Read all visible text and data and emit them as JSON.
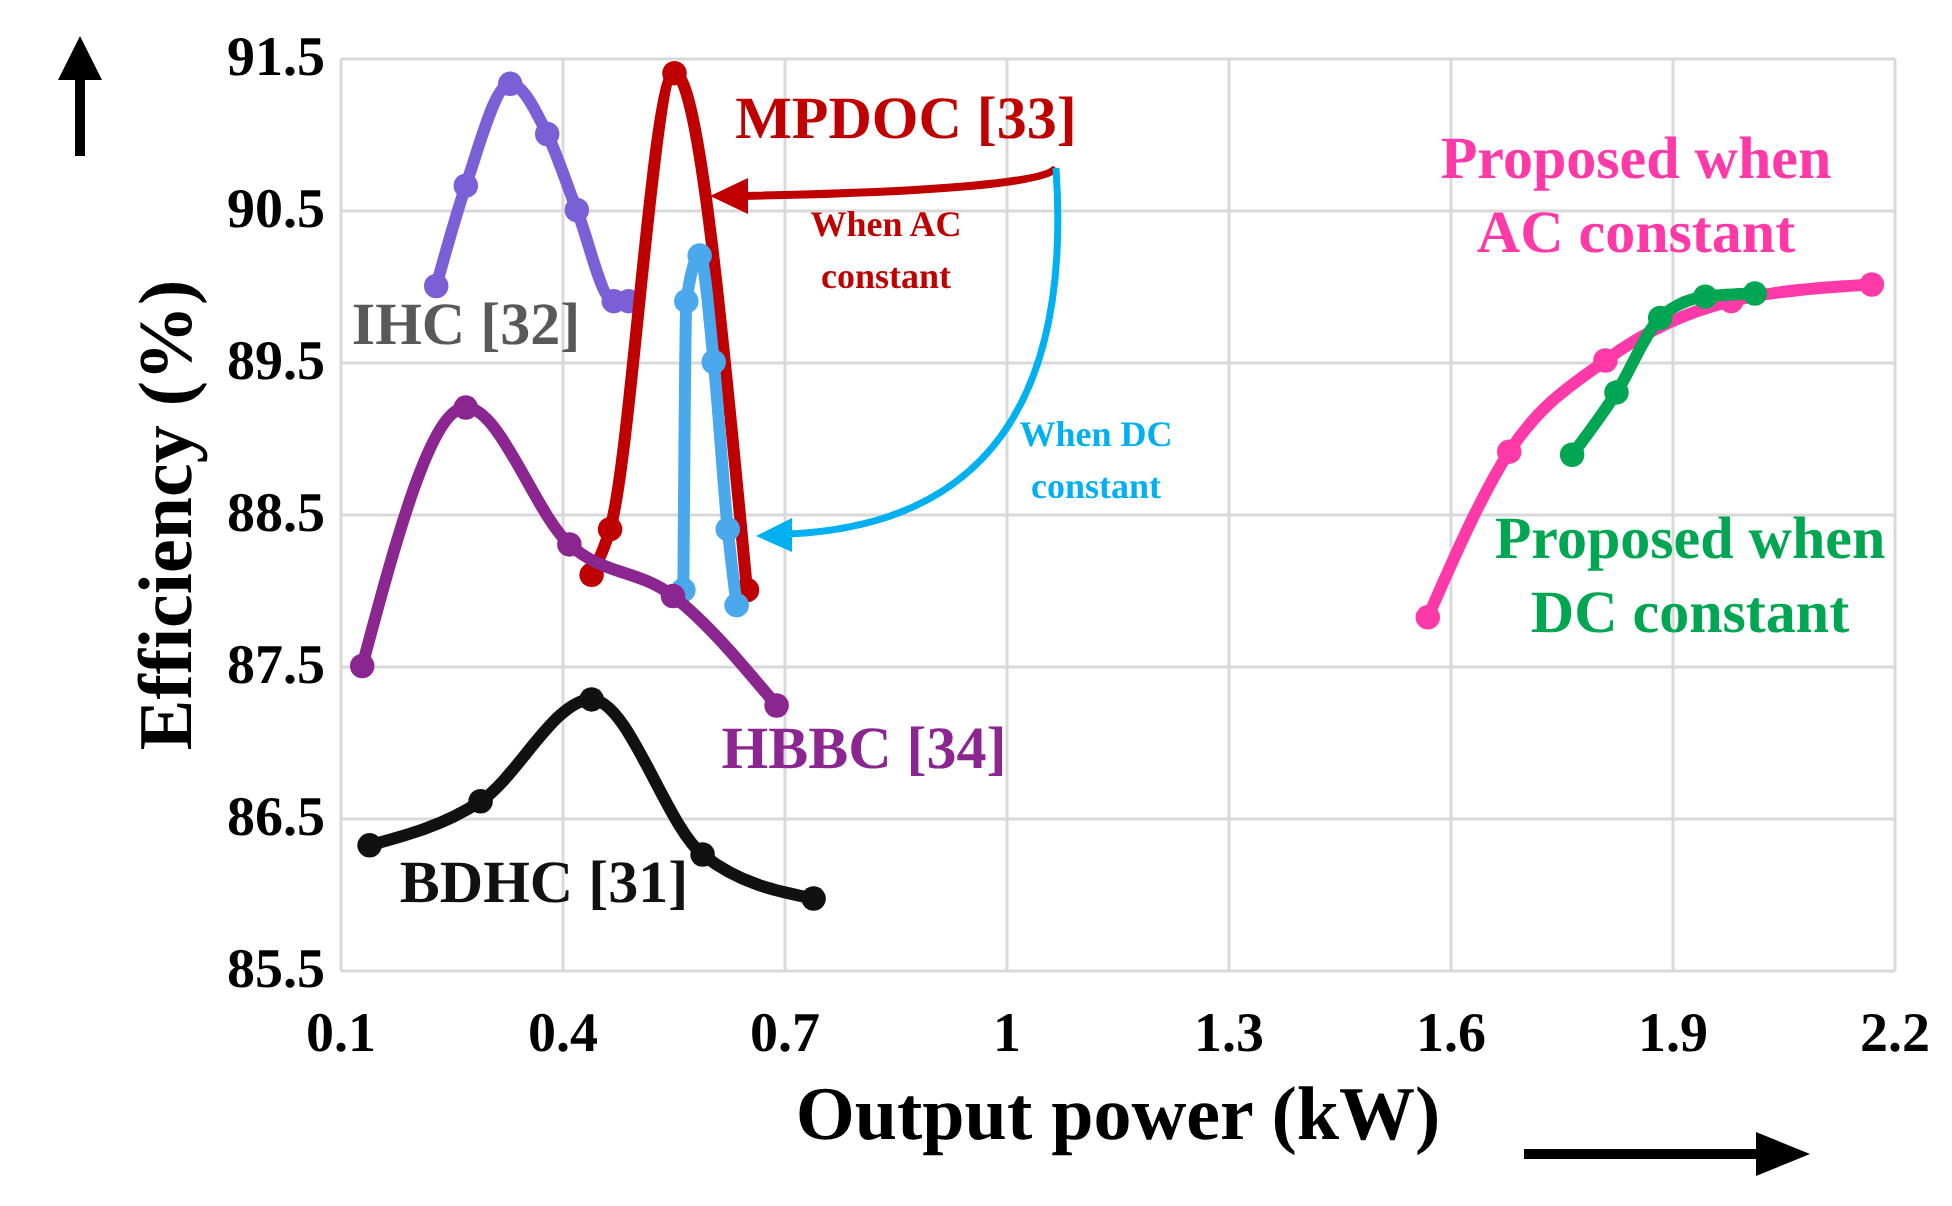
{
  "chart_data": {
    "type": "line",
    "xlabel": "Output power (kW)",
    "ylabel": "Efficiency (%)",
    "xlim": [
      0.1,
      2.2
    ],
    "xticks": [
      0.1,
      0.4,
      0.7,
      1,
      1.3,
      1.6,
      1.9,
      2.2
    ],
    "ylim": [
      85.5,
      91.5
    ],
    "yticks": [
      85.5,
      86.5,
      87.5,
      88.5,
      89.5,
      90.5,
      91.5
    ],
    "grid": true,
    "marker": "circle",
    "series": [
      {
        "name": "IHC [32]",
        "color": "#7a5fd6",
        "x": [
          0.23,
          0.27,
          0.33,
          0.38,
          0.42,
          0.47,
          0.49
        ],
        "values": [
          90.0,
          90.66,
          91.33,
          91.0,
          90.5,
          89.9,
          89.9
        ]
      },
      {
        "name": "MPDOC [33]",
        "color": "#c00000",
        "x": [
          0.44,
          0.465,
          0.552,
          0.65
        ],
        "values": [
          88.1,
          88.4,
          91.4,
          88.0
        ]
      },
      {
        "color": "#4aa8ec",
        "x": [
          0.564,
          0.568,
          0.586,
          0.605,
          0.624,
          0.636
        ],
        "values": [
          88.0,
          89.9,
          90.2,
          89.5,
          88.4,
          87.9
        ]
      },
      {
        "name": "HBBC [34]",
        "color": "#8b2590",
        "x": [
          0.13,
          0.27,
          0.41,
          0.55,
          0.69
        ],
        "values": [
          87.5,
          89.2,
          88.3,
          87.96,
          87.24
        ]
      },
      {
        "name": "BDHC [31]",
        "color": "#111111",
        "x": [
          0.14,
          0.29,
          0.44,
          0.59,
          0.74
        ],
        "values": [
          86.32,
          86.61,
          87.28,
          86.26,
          85.97
        ]
      },
      {
        "name": "Proposed when AC constant",
        "color": "#ff3aa8",
        "x": [
          1.57,
          1.68,
          1.81,
          1.98,
          2.17
        ],
        "values": [
          87.82,
          88.91,
          89.51,
          89.9,
          90.01
        ]
      },
      {
        "name": "Proposed when DC constant",
        "color": "#00a651",
        "x": [
          1.765,
          1.825,
          1.884,
          1.945,
          2.012
        ],
        "values": [
          88.89,
          89.3,
          89.79,
          89.93,
          89.95
        ]
      }
    ],
    "annotations": [
      "When AC constant",
      "When DC constant"
    ]
  }
}
